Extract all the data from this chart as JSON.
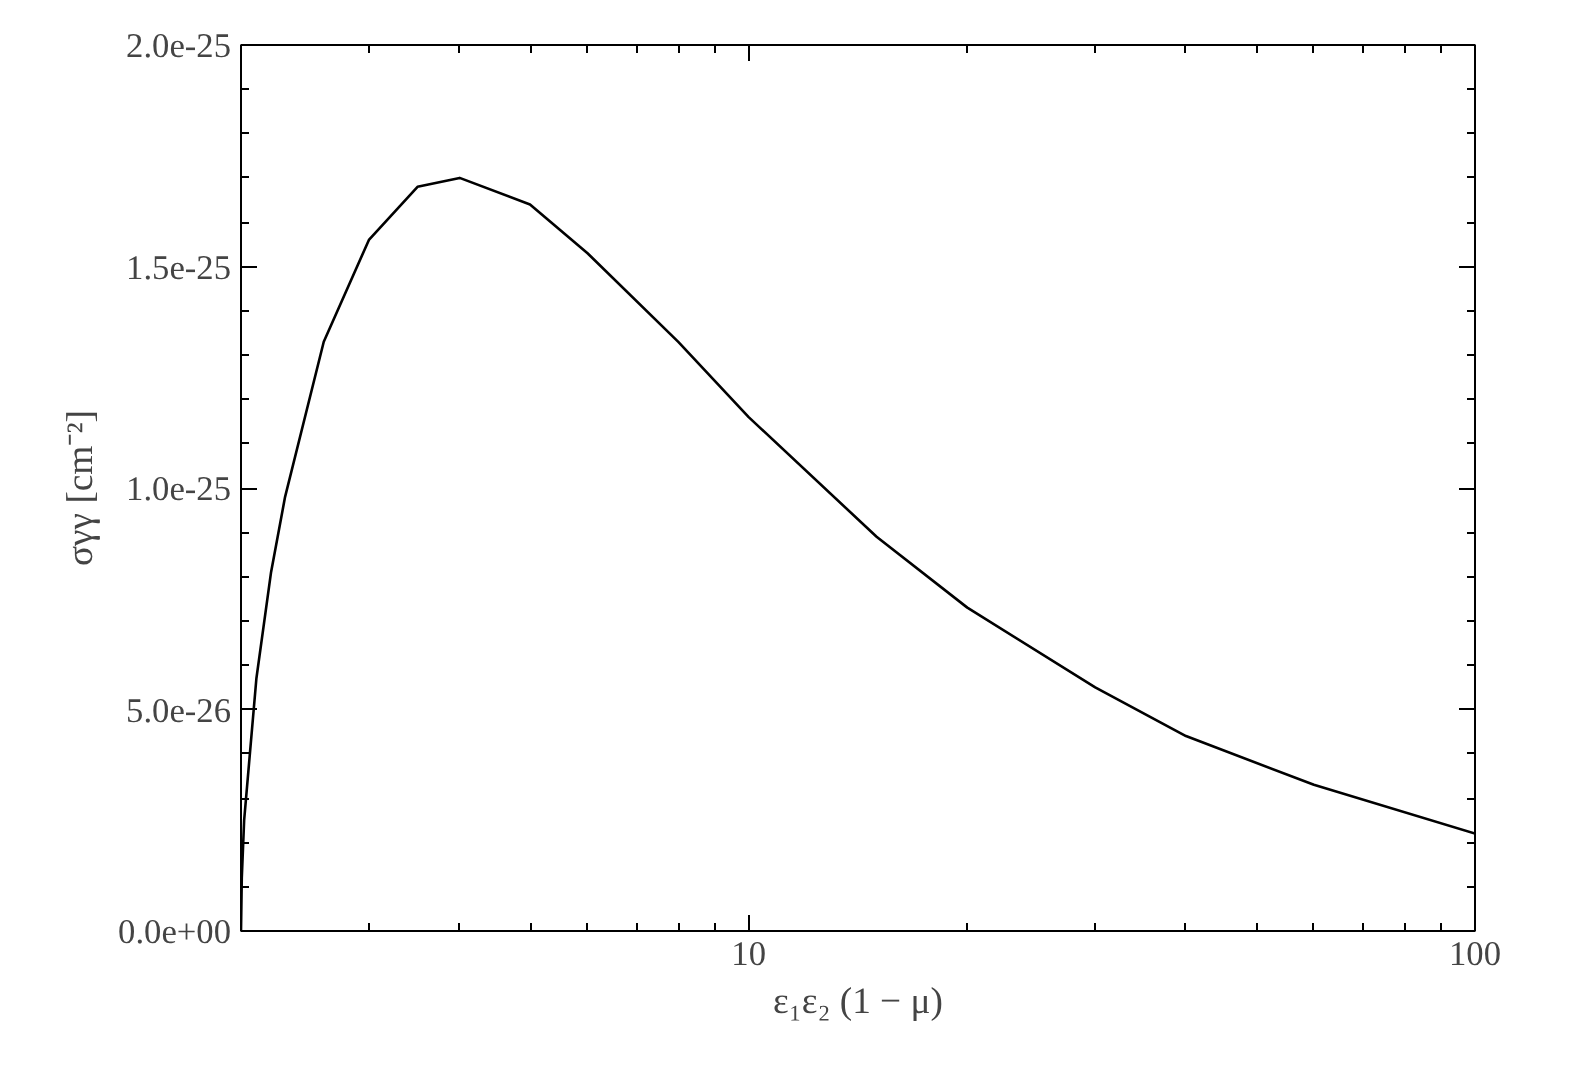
{
  "chart_data": {
    "type": "line",
    "xlabel": "ε₁ε₂ (1 − μ)",
    "ylabel": "σγγ [cm⁻²]",
    "log": "x",
    "xlim": [
      2,
      100
    ],
    "xticks": [
      10,
      100
    ],
    "ylim": [
      0,
      2e-25
    ],
    "yticks": [
      {
        "value": 0,
        "label": "0.0e+00"
      },
      {
        "value": 5e-26,
        "label": "5.0e-26"
      },
      {
        "value": 1e-25,
        "label": "1.0e-25"
      },
      {
        "value": 1.5e-25,
        "label": "1.5e-25"
      },
      {
        "value": 2e-25,
        "label": "2.0e-25"
      }
    ],
    "grid": false,
    "marker": "none",
    "line_style": "solid",
    "series": [
      {
        "color": "#000000",
        "x": [
          2,
          2.005,
          2.02,
          2.1,
          2.2,
          2.3,
          2.6,
          3,
          3.5,
          4,
          5,
          6,
          8,
          10,
          15,
          20,
          30,
          40,
          60,
          100
        ],
        "values": [
          0,
          1.2e-26,
          2.5e-26,
          5.7e-26,
          8.1e-26,
          9.8e-26,
          1.33e-25,
          1.56e-25,
          1.68e-25,
          1.7e-25,
          1.64e-25,
          1.53e-25,
          1.33e-25,
          1.16e-25,
          8.9e-26,
          7.3e-26,
          5.5e-26,
          4.4e-26,
          3.3e-26,
          2.2e-26
        ]
      }
    ]
  }
}
